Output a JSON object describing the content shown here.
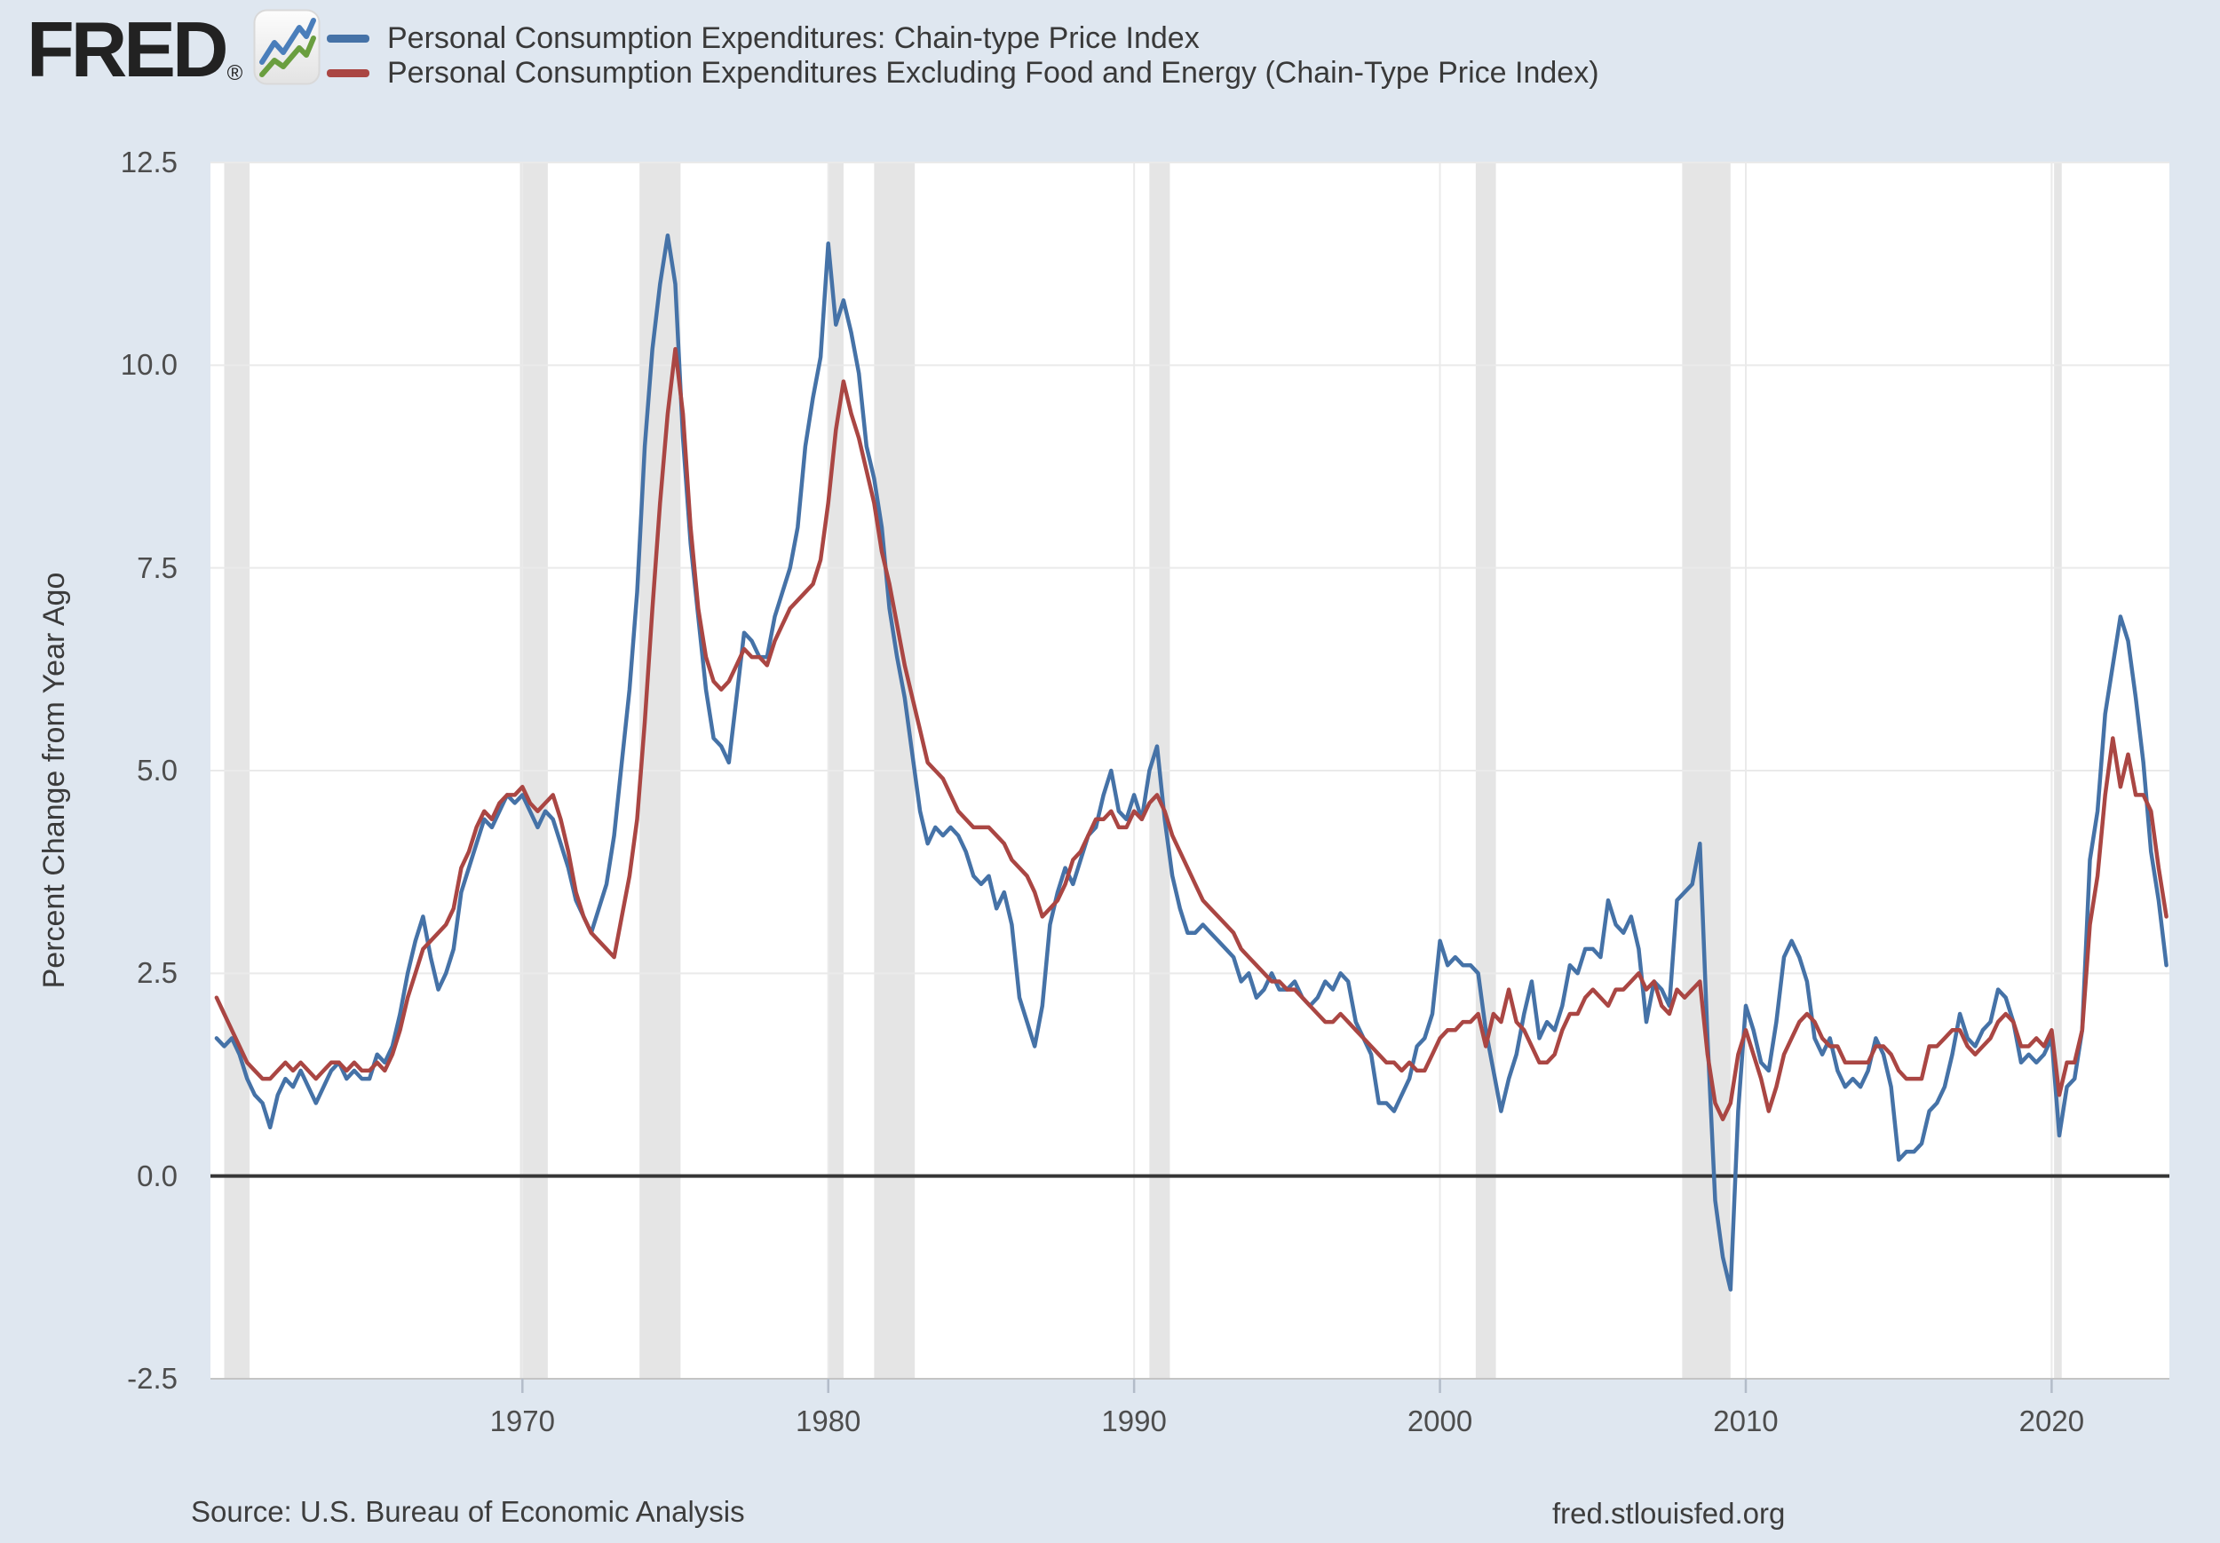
{
  "header": {
    "logo_text": "FRED",
    "logo_reg": "®",
    "legend": [
      {
        "label": "Personal Consumption Expenditures: Chain-type Price Index",
        "color": "#4572a7"
      },
      {
        "label": "Personal Consumption Expenditures Excluding Food and Energy (Chain-Type Price Index)",
        "color": "#aa4643"
      }
    ]
  },
  "y_axis": {
    "title": "Percent Change from Year Ago",
    "tick_labels": [
      "12.5",
      "10.0",
      "7.5",
      "5.0",
      "2.5",
      "0.0",
      "-2.5"
    ]
  },
  "x_axis": {
    "tick_labels": [
      "1970",
      "1980",
      "1990",
      "2000",
      "2010",
      "2020"
    ]
  },
  "footer": {
    "source": "Source: U.S. Bureau of Economic Analysis",
    "site": "fred.stlouisfed.org"
  },
  "colors": {
    "background": "#dfe7f0",
    "plot_background": "#ffffff",
    "gridline": "#eaeaea",
    "recession_band": "#e5e5e5",
    "zero_line": "#363636",
    "axis_line": "#c4c4c4",
    "tick": "#b3bcc9",
    "series_pce": "#4572a7",
    "series_core_pce": "#aa4643",
    "icon_blue": "#4a7ebb",
    "icon_green": "#6a9e3f"
  },
  "chart_data": {
    "type": "line",
    "title": "",
    "xlabel": "",
    "ylabel": "Percent Change from Year Ago",
    "ylim": [
      -2.5,
      12.5
    ],
    "xlim": [
      1959.8,
      2023.85
    ],
    "y_ticks": [
      12.5,
      10.0,
      7.5,
      5.0,
      2.5,
      0.0,
      -2.5
    ],
    "x_ticks": [
      1970,
      1980,
      1990,
      2000,
      2010,
      2020
    ],
    "grid": true,
    "zero_line": true,
    "legend_position": "top-left",
    "x_start": 1960,
    "x_step": 0.25,
    "x_unit": "year (quarterly resolution, values in percent)",
    "recession_bands": [
      [
        1960.25,
        1961.08
      ],
      [
        1969.92,
        1970.83
      ],
      [
        1973.83,
        1975.17
      ],
      [
        1980.0,
        1980.5
      ],
      [
        1981.5,
        1982.83
      ],
      [
        1990.5,
        1991.17
      ],
      [
        2001.17,
        2001.83
      ],
      [
        2007.92,
        2009.5
      ],
      [
        2020.08,
        2020.33
      ]
    ],
    "series": [
      {
        "name": "Personal Consumption Expenditures: Chain-type Price Index",
        "color": "#4572a7",
        "values": [
          1.7,
          1.6,
          1.7,
          1.5,
          1.2,
          1.0,
          0.9,
          0.6,
          1.0,
          1.2,
          1.1,
          1.3,
          1.1,
          0.9,
          1.1,
          1.3,
          1.4,
          1.2,
          1.3,
          1.2,
          1.2,
          1.5,
          1.4,
          1.6,
          2.0,
          2.5,
          2.9,
          3.2,
          2.7,
          2.3,
          2.5,
          2.8,
          3.5,
          3.8,
          4.1,
          4.4,
          4.3,
          4.5,
          4.7,
          4.6,
          4.7,
          4.5,
          4.3,
          4.5,
          4.4,
          4.1,
          3.8,
          3.4,
          3.2,
          3.0,
          3.3,
          3.6,
          4.2,
          5.1,
          6.0,
          7.2,
          9.0,
          10.2,
          11.0,
          11.6,
          11.0,
          9.1,
          7.8,
          6.9,
          6.0,
          5.4,
          5.3,
          5.1,
          5.9,
          6.7,
          6.6,
          6.4,
          6.4,
          6.9,
          7.2,
          7.5,
          8.0,
          9.0,
          9.6,
          10.1,
          11.5,
          10.5,
          10.8,
          10.4,
          9.9,
          9.0,
          8.6,
          8.0,
          7.0,
          6.4,
          5.9,
          5.2,
          4.5,
          4.1,
          4.3,
          4.2,
          4.3,
          4.2,
          4.0,
          3.7,
          3.6,
          3.7,
          3.3,
          3.5,
          3.1,
          2.2,
          1.9,
          1.6,
          2.1,
          3.1,
          3.5,
          3.8,
          3.6,
          3.9,
          4.2,
          4.3,
          4.7,
          5.0,
          4.5,
          4.4,
          4.7,
          4.4,
          5.0,
          5.3,
          4.4,
          3.7,
          3.3,
          3.0,
          3.0,
          3.1,
          3.0,
          2.9,
          2.8,
          2.7,
          2.4,
          2.5,
          2.2,
          2.3,
          2.5,
          2.3,
          2.3,
          2.4,
          2.2,
          2.1,
          2.2,
          2.4,
          2.3,
          2.5,
          2.4,
          1.9,
          1.7,
          1.5,
          0.9,
          0.9,
          0.8,
          1.0,
          1.2,
          1.6,
          1.7,
          2.0,
          2.9,
          2.6,
          2.7,
          2.6,
          2.6,
          2.5,
          1.8,
          1.3,
          0.8,
          1.2,
          1.5,
          2.0,
          2.4,
          1.7,
          1.9,
          1.8,
          2.1,
          2.6,
          2.5,
          2.8,
          2.8,
          2.7,
          3.4,
          3.1,
          3.0,
          3.2,
          2.8,
          1.9,
          2.4,
          2.3,
          2.1,
          3.4,
          3.5,
          3.6,
          4.1,
          1.7,
          -0.3,
          -1.0,
          -1.4,
          0.8,
          2.1,
          1.8,
          1.4,
          1.3,
          1.9,
          2.7,
          2.9,
          2.7,
          2.4,
          1.7,
          1.5,
          1.7,
          1.3,
          1.1,
          1.2,
          1.1,
          1.3,
          1.7,
          1.5,
          1.1,
          0.2,
          0.3,
          0.3,
          0.4,
          0.8,
          0.9,
          1.1,
          1.5,
          2.0,
          1.7,
          1.6,
          1.8,
          1.9,
          2.3,
          2.2,
          1.9,
          1.4,
          1.5,
          1.4,
          1.5,
          1.7,
          0.5,
          1.1,
          1.2,
          1.8,
          3.9,
          4.5,
          5.7,
          6.3,
          6.9,
          6.6,
          5.9,
          5.1,
          4.0,
          3.4,
          2.6
        ]
      },
      {
        "name": "Personal Consumption Expenditures Excluding Food and Energy (Chain-Type Price Index)",
        "color": "#aa4643",
        "values": [
          2.2,
          2.0,
          1.8,
          1.6,
          1.4,
          1.3,
          1.2,
          1.2,
          1.3,
          1.4,
          1.3,
          1.4,
          1.3,
          1.2,
          1.3,
          1.4,
          1.4,
          1.3,
          1.4,
          1.3,
          1.3,
          1.4,
          1.3,
          1.5,
          1.8,
          2.2,
          2.5,
          2.8,
          2.9,
          3.0,
          3.1,
          3.3,
          3.8,
          4.0,
          4.3,
          4.5,
          4.4,
          4.6,
          4.7,
          4.7,
          4.8,
          4.6,
          4.5,
          4.6,
          4.7,
          4.4,
          4.0,
          3.5,
          3.2,
          3.0,
          2.9,
          2.8,
          2.7,
          3.2,
          3.7,
          4.4,
          5.6,
          7.0,
          8.3,
          9.4,
          10.2,
          9.4,
          8.0,
          7.0,
          6.4,
          6.1,
          6.0,
          6.1,
          6.3,
          6.5,
          6.4,
          6.4,
          6.3,
          6.6,
          6.8,
          7.0,
          7.1,
          7.2,
          7.3,
          7.6,
          8.3,
          9.2,
          9.8,
          9.4,
          9.1,
          8.7,
          8.3,
          7.7,
          7.3,
          6.8,
          6.3,
          5.9,
          5.5,
          5.1,
          5.0,
          4.9,
          4.7,
          4.5,
          4.4,
          4.3,
          4.3,
          4.3,
          4.2,
          4.1,
          3.9,
          3.8,
          3.7,
          3.5,
          3.2,
          3.3,
          3.4,
          3.6,
          3.9,
          4.0,
          4.2,
          4.4,
          4.4,
          4.5,
          4.3,
          4.3,
          4.5,
          4.4,
          4.6,
          4.7,
          4.5,
          4.2,
          4.0,
          3.8,
          3.6,
          3.4,
          3.3,
          3.2,
          3.1,
          3.0,
          2.8,
          2.7,
          2.6,
          2.5,
          2.4,
          2.4,
          2.3,
          2.3,
          2.2,
          2.1,
          2.0,
          1.9,
          1.9,
          2.0,
          1.9,
          1.8,
          1.7,
          1.6,
          1.5,
          1.4,
          1.4,
          1.3,
          1.4,
          1.3,
          1.3,
          1.5,
          1.7,
          1.8,
          1.8,
          1.9,
          1.9,
          2.0,
          1.6,
          2.0,
          1.9,
          2.3,
          1.9,
          1.8,
          1.6,
          1.4,
          1.4,
          1.5,
          1.8,
          2.0,
          2.0,
          2.2,
          2.3,
          2.2,
          2.1,
          2.3,
          2.3,
          2.4,
          2.5,
          2.3,
          2.4,
          2.1,
          2.0,
          2.3,
          2.2,
          2.3,
          2.4,
          1.5,
          0.9,
          0.7,
          0.9,
          1.5,
          1.8,
          1.5,
          1.2,
          0.8,
          1.1,
          1.5,
          1.7,
          1.9,
          2.0,
          1.9,
          1.7,
          1.6,
          1.6,
          1.4,
          1.4,
          1.4,
          1.4,
          1.6,
          1.6,
          1.5,
          1.3,
          1.2,
          1.2,
          1.2,
          1.6,
          1.6,
          1.7,
          1.8,
          1.8,
          1.6,
          1.5,
          1.6,
          1.7,
          1.9,
          2.0,
          1.9,
          1.6,
          1.6,
          1.7,
          1.6,
          1.8,
          1.0,
          1.4,
          1.4,
          1.8,
          3.1,
          3.7,
          4.7,
          5.4,
          4.8,
          5.2,
          4.7,
          4.7,
          4.5,
          3.8,
          3.2
        ]
      }
    ]
  }
}
